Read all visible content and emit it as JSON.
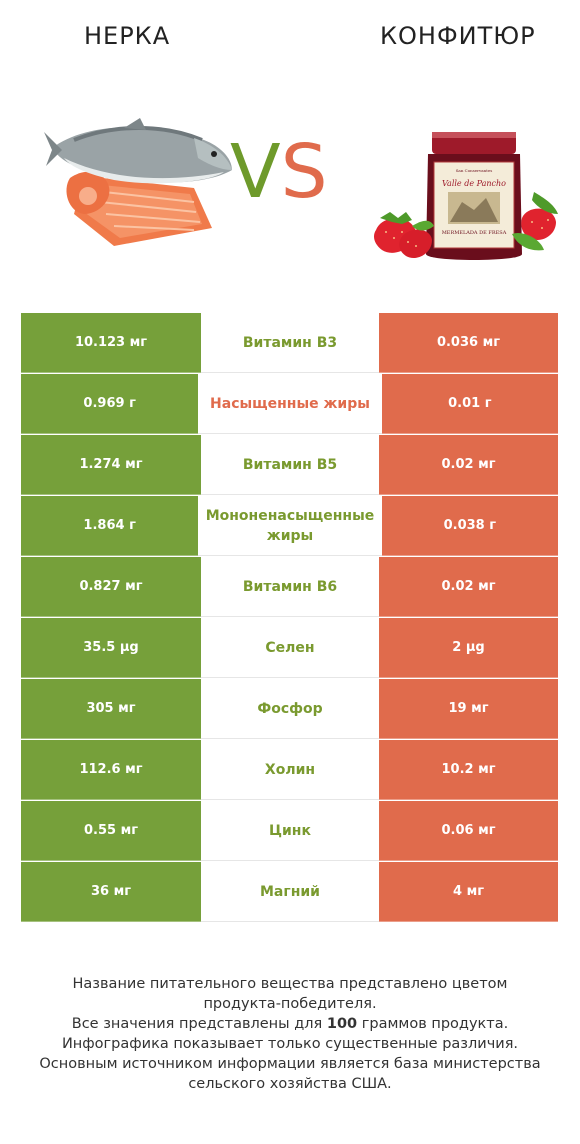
{
  "header": {
    "left_title": "НЕРКА",
    "right_title": "КОНФИТЮР",
    "vs_v": "V",
    "vs_s": "S"
  },
  "jar_label": {
    "brand": "San Conservantes",
    "name": "Valle de Pancho",
    "product": "MERMELADA DE FRESA"
  },
  "colors": {
    "left_winner": "#76a03a",
    "right_winner": "#e06b4c"
  },
  "rows": [
    {
      "left": "10.123 мг",
      "name": "Витамин B3",
      "right": "0.036 мг",
      "winner": "left"
    },
    {
      "left": "0.969 г",
      "name": "Насыщенные жиры",
      "right": "0.01 г",
      "winner": "right"
    },
    {
      "left": "1.274 мг",
      "name": "Витамин B5",
      "right": "0.02 мг",
      "winner": "left"
    },
    {
      "left": "1.864 г",
      "name": "Мононенасыщенные жиры",
      "right": "0.038 г",
      "winner": "left"
    },
    {
      "left": "0.827 мг",
      "name": "Витамин B6",
      "right": "0.02 мг",
      "winner": "left"
    },
    {
      "left": "35.5 µg",
      "name": "Селен",
      "right": "2 µg",
      "winner": "left"
    },
    {
      "left": "305 мг",
      "name": "Фосфор",
      "right": "19 мг",
      "winner": "left"
    },
    {
      "left": "112.6 мг",
      "name": "Холин",
      "right": "10.2 мг",
      "winner": "left"
    },
    {
      "left": "0.55 мг",
      "name": "Цинк",
      "right": "0.06 мг",
      "winner": "left"
    },
    {
      "left": "36 мг",
      "name": "Магний",
      "right": "4 мг",
      "winner": "left"
    }
  ],
  "footer": {
    "line1": "Название питательного вещества представлено цветом",
    "line2": "продукта-победителя.",
    "line3_pre": "Все значения представлены для ",
    "line3_bold": "100",
    "line3_post": " граммов продукта.",
    "line4": "Инфографика показывает только существенные различия.",
    "line5": "Основным источником информации является база министерства",
    "line6": "сельского хозяйства США."
  }
}
